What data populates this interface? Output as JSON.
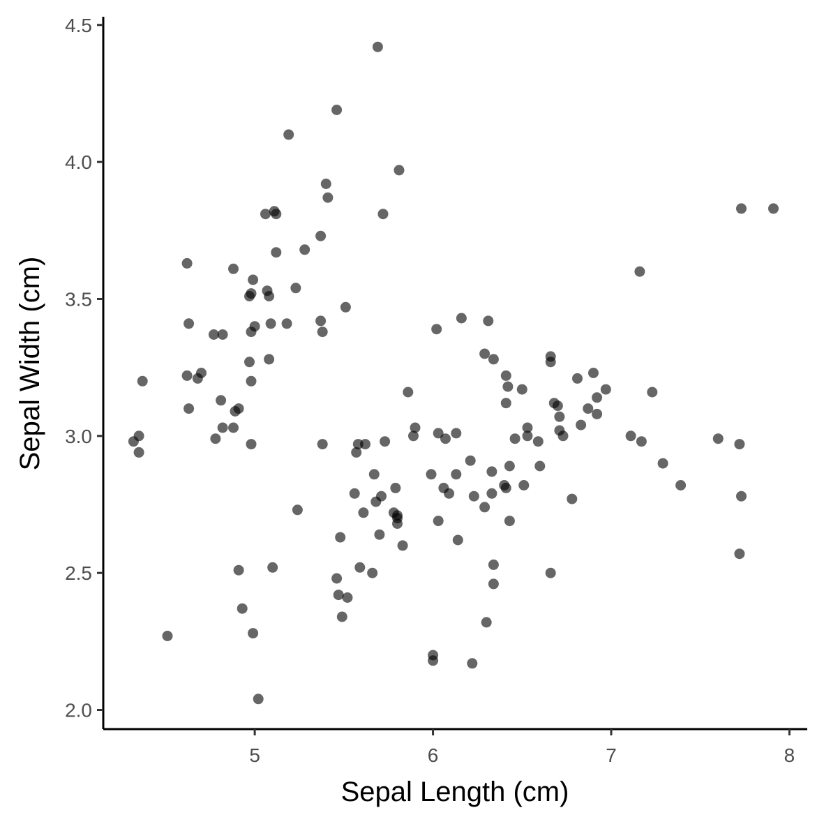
{
  "chart_data": {
    "type": "scatter",
    "title": "",
    "xlabel": "Sepal Length (cm)",
    "ylabel": "Sepal Width (cm)",
    "xlim": [
      4.15,
      8.1
    ],
    "ylim": [
      1.93,
      4.53
    ],
    "x_ticks": [
      5,
      6,
      7,
      8
    ],
    "x_tick_labels": [
      "5",
      "6",
      "7",
      "8"
    ],
    "y_ticks": [
      2.0,
      2.5,
      3.0,
      3.5,
      4.0,
      4.5
    ],
    "y_tick_labels": [
      "2.0",
      "2.5",
      "3.0",
      "3.5",
      "4.0",
      "4.5"
    ],
    "grid": false,
    "legend": "none",
    "point_color": "#000000",
    "point_opacity": 0.6,
    "series": [
      {
        "points": [
          [
            4.32,
            2.98
          ],
          [
            4.35,
            3.0
          ],
          [
            4.35,
            2.94
          ],
          [
            4.37,
            3.2
          ],
          [
            4.51,
            2.27
          ],
          [
            4.62,
            3.63
          ],
          [
            4.62,
            3.22
          ],
          [
            4.63,
            3.41
          ],
          [
            4.63,
            3.1
          ],
          [
            4.68,
            3.21
          ],
          [
            4.7,
            3.23
          ],
          [
            4.77,
            3.37
          ],
          [
            4.78,
            2.99
          ],
          [
            4.81,
            3.13
          ],
          [
            4.82,
            3.03
          ],
          [
            4.82,
            3.37
          ],
          [
            4.88,
            3.61
          ],
          [
            4.88,
            3.03
          ],
          [
            4.89,
            3.09
          ],
          [
            4.91,
            3.1
          ],
          [
            4.91,
            2.51
          ],
          [
            4.93,
            2.37
          ],
          [
            4.97,
            3.27
          ],
          [
            4.97,
            3.51
          ],
          [
            4.98,
            3.52
          ],
          [
            4.98,
            3.38
          ],
          [
            4.98,
            3.2
          ],
          [
            4.98,
            2.97
          ],
          [
            4.99,
            2.28
          ],
          [
            4.99,
            3.57
          ],
          [
            5.0,
            3.4
          ],
          [
            5.02,
            2.04
          ],
          [
            5.06,
            3.81
          ],
          [
            5.07,
            3.53
          ],
          [
            5.08,
            3.51
          ],
          [
            5.08,
            3.28
          ],
          [
            5.09,
            3.41
          ],
          [
            5.1,
            2.52
          ],
          [
            5.11,
            3.82
          ],
          [
            5.12,
            3.81
          ],
          [
            5.12,
            3.67
          ],
          [
            5.18,
            3.41
          ],
          [
            5.19,
            4.1
          ],
          [
            5.23,
            3.54
          ],
          [
            5.24,
            2.73
          ],
          [
            5.28,
            3.68
          ],
          [
            5.37,
            3.73
          ],
          [
            5.37,
            3.42
          ],
          [
            5.38,
            3.38
          ],
          [
            5.38,
            2.97
          ],
          [
            5.4,
            3.92
          ],
          [
            5.41,
            3.87
          ],
          [
            5.46,
            4.19
          ],
          [
            5.46,
            2.48
          ],
          [
            5.47,
            2.42
          ],
          [
            5.48,
            2.63
          ],
          [
            5.49,
            2.34
          ],
          [
            5.51,
            3.47
          ],
          [
            5.52,
            2.41
          ],
          [
            5.56,
            2.79
          ],
          [
            5.57,
            2.94
          ],
          [
            5.58,
            2.97
          ],
          [
            5.59,
            2.52
          ],
          [
            5.61,
            2.72
          ],
          [
            5.62,
            2.97
          ],
          [
            5.66,
            2.5
          ],
          [
            5.67,
            2.86
          ],
          [
            5.68,
            2.76
          ],
          [
            5.69,
            4.42
          ],
          [
            5.7,
            2.64
          ],
          [
            5.71,
            2.78
          ],
          [
            5.72,
            3.81
          ],
          [
            5.73,
            2.98
          ],
          [
            5.78,
            2.72
          ],
          [
            5.79,
            2.81
          ],
          [
            5.8,
            2.68
          ],
          [
            5.8,
            2.7
          ],
          [
            5.8,
            2.71
          ],
          [
            5.81,
            3.97
          ],
          [
            5.83,
            2.6
          ],
          [
            5.86,
            3.16
          ],
          [
            5.89,
            3.0
          ],
          [
            5.9,
            3.03
          ],
          [
            5.99,
            2.86
          ],
          [
            6.0,
            2.2
          ],
          [
            6.0,
            2.18
          ],
          [
            6.02,
            3.39
          ],
          [
            6.03,
            3.01
          ],
          [
            6.03,
            2.69
          ],
          [
            6.06,
            2.81
          ],
          [
            6.07,
            2.99
          ],
          [
            6.09,
            2.79
          ],
          [
            6.13,
            3.01
          ],
          [
            6.13,
            2.86
          ],
          [
            6.14,
            2.62
          ],
          [
            6.16,
            3.43
          ],
          [
            6.21,
            2.91
          ],
          [
            6.22,
            2.17
          ],
          [
            6.23,
            2.78
          ],
          [
            6.29,
            3.3
          ],
          [
            6.29,
            2.74
          ],
          [
            6.3,
            2.32
          ],
          [
            6.31,
            3.42
          ],
          [
            6.33,
            2.79
          ],
          [
            6.33,
            2.87
          ],
          [
            6.34,
            2.53
          ],
          [
            6.34,
            2.46
          ],
          [
            6.34,
            3.28
          ],
          [
            6.4,
            2.82
          ],
          [
            6.41,
            2.81
          ],
          [
            6.41,
            3.22
          ],
          [
            6.41,
            3.12
          ],
          [
            6.42,
            3.18
          ],
          [
            6.43,
            2.89
          ],
          [
            6.43,
            2.69
          ],
          [
            6.46,
            2.99
          ],
          [
            6.5,
            3.17
          ],
          [
            6.51,
            2.82
          ],
          [
            6.53,
            3.03
          ],
          [
            6.53,
            3.0
          ],
          [
            6.59,
            2.98
          ],
          [
            6.6,
            2.89
          ],
          [
            6.66,
            3.29
          ],
          [
            6.66,
            3.27
          ],
          [
            6.66,
            2.5
          ],
          [
            6.68,
            3.12
          ],
          [
            6.7,
            3.11
          ],
          [
            6.71,
            3.07
          ],
          [
            6.71,
            3.02
          ],
          [
            6.73,
            3.0
          ],
          [
            6.78,
            2.77
          ],
          [
            6.81,
            3.21
          ],
          [
            6.83,
            3.04
          ],
          [
            6.87,
            3.1
          ],
          [
            6.9,
            3.23
          ],
          [
            6.92,
            3.08
          ],
          [
            6.92,
            3.14
          ],
          [
            6.97,
            3.17
          ],
          [
            7.11,
            3.0
          ],
          [
            7.16,
            3.6
          ],
          [
            7.17,
            2.98
          ],
          [
            7.23,
            3.16
          ],
          [
            7.29,
            2.9
          ],
          [
            7.39,
            2.82
          ],
          [
            7.6,
            2.99
          ],
          [
            7.72,
            2.97
          ],
          [
            7.72,
            2.57
          ],
          [
            7.73,
            2.78
          ],
          [
            7.73,
            3.83
          ],
          [
            7.91,
            3.83
          ]
        ]
      }
    ]
  }
}
